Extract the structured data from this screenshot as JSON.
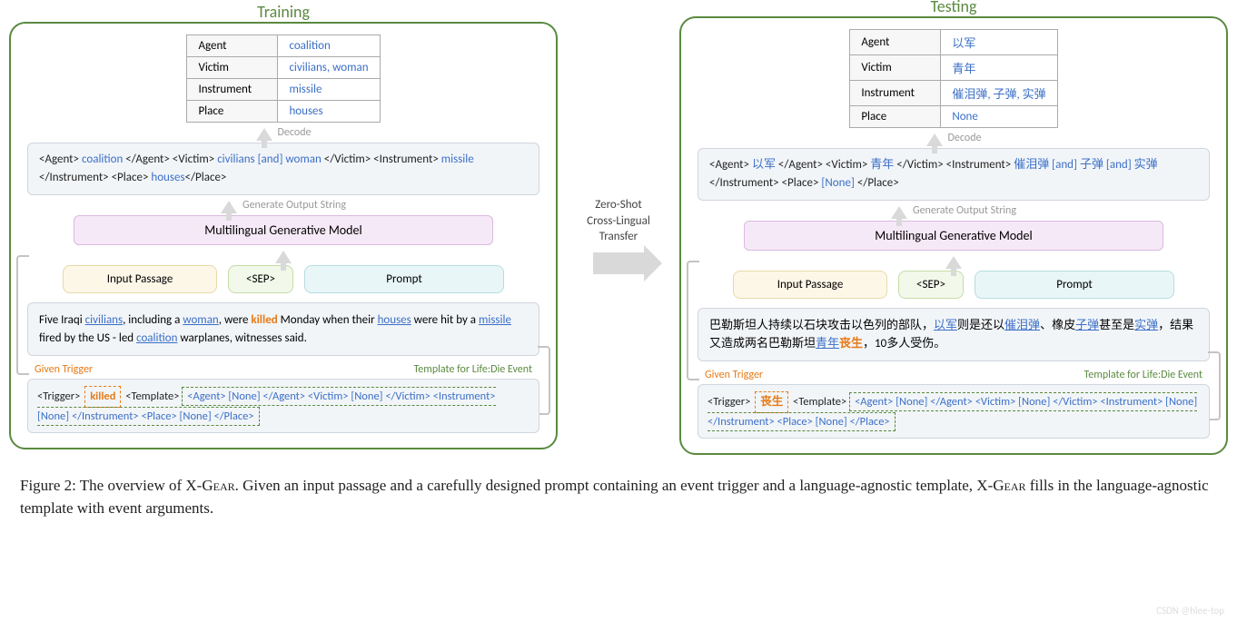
{
  "colors": {
    "panel_border": "#5a8a3f",
    "title_color": "#5a8a3f",
    "link_color": "#3b6fc7",
    "trigger_color": "#e67a17",
    "arrow_gray": "#d9d9d9",
    "box_bg": "#f2f5f8",
    "model_bg": "#f6e9f7",
    "passage_pill_bg": "#fdf7e8",
    "sep_pill_bg": "#f2f8ea",
    "prompt_pill_bg": "#e9f6f7"
  },
  "training": {
    "title": "Training",
    "roles": [
      {
        "role": "Agent",
        "value": "coalition"
      },
      {
        "role": "Victim",
        "value": "civilians, woman"
      },
      {
        "role": "Instrument",
        "value": "missile"
      },
      {
        "role": "Place",
        "value": "houses"
      }
    ],
    "decode_label": "Decode",
    "output_tokens": [
      {
        "t": "tag",
        "v": "<Agent> "
      },
      {
        "t": "val",
        "v": "coalition"
      },
      {
        "t": "tag",
        "v": " </Agent> <Victim> "
      },
      {
        "t": "val",
        "v": "civilians [and] woman"
      },
      {
        "t": "tag",
        "v": " </Victim> <Instrument> "
      },
      {
        "t": "val",
        "v": "missile"
      },
      {
        "t": "tag",
        "v": " </Instrument> <Place> "
      },
      {
        "t": "val",
        "v": "houses"
      },
      {
        "t": "tag",
        "v": "</Place>"
      }
    ],
    "gen_label": "Generate Output String",
    "model_label": "Multilingual Generative Model",
    "pills": {
      "passage": "Input Passage",
      "sep": "<SEP>",
      "prompt": "Prompt"
    },
    "passage_tokens": [
      {
        "t": "txt",
        "v": "Five Iraqi "
      },
      {
        "t": "ul",
        "v": "civilians"
      },
      {
        "t": "txt",
        "v": ", including a "
      },
      {
        "t": "ul",
        "v": "woman"
      },
      {
        "t": "txt",
        "v": ", were "
      },
      {
        "t": "trig",
        "v": "killed"
      },
      {
        "t": "txt",
        "v": " Monday when their "
      },
      {
        "t": "ul",
        "v": "houses"
      },
      {
        "t": "txt",
        "v": " were hit by a "
      },
      {
        "t": "ul",
        "v": "missile"
      },
      {
        "t": "txt",
        "v": " fired by the US - led "
      },
      {
        "t": "ul",
        "v": "coalition"
      },
      {
        "t": "txt",
        "v": " warplanes, witnesses said."
      }
    ],
    "prompt_labels": {
      "trigger": "Given Trigger",
      "template": "Template for Life:Die Event"
    },
    "prompt_prefix": "<Trigger>",
    "prompt_trigger": "killed",
    "prompt_mid": "<Template>",
    "prompt_template": "<Agent> [None] </Agent> <Victim> [None] </Victim> <Instrument> [None] </Instrument> <Place> [None] </Place>"
  },
  "transfer": {
    "label": "Zero-Shot\nCross-Lingual\nTransfer"
  },
  "testing": {
    "title": "Testing",
    "roles": [
      {
        "role": "Agent",
        "value": "以军"
      },
      {
        "role": "Victim",
        "value": "青年"
      },
      {
        "role": "Instrument",
        "value": "催泪弹, 子弹, 实弹"
      },
      {
        "role": "Place",
        "value": "None"
      }
    ],
    "decode_label": "Decode",
    "output_tokens": [
      {
        "t": "tag",
        "v": "<Agent> "
      },
      {
        "t": "val",
        "v": "以军"
      },
      {
        "t": "tag",
        "v": " </Agent> <Victim> "
      },
      {
        "t": "val",
        "v": "青年"
      },
      {
        "t": "tag",
        "v": " </Victim> <Instrument> "
      },
      {
        "t": "val",
        "v": "催泪弹 [and] 子弹 [and] 实弹"
      },
      {
        "t": "tag",
        "v": " </Instrument> <Place> "
      },
      {
        "t": "val",
        "v": "[None]"
      },
      {
        "t": "tag",
        "v": " </Place>"
      }
    ],
    "gen_label": "Generate Output String",
    "model_label": "Multilingual Generative Model",
    "pills": {
      "passage": "Input Passage",
      "sep": "<SEP>",
      "prompt": "Prompt"
    },
    "passage_tokens": [
      {
        "t": "txt",
        "v": "巴勒斯坦人持续以石块攻击以色列的部队，"
      },
      {
        "t": "ul",
        "v": "以军"
      },
      {
        "t": "txt",
        "v": "则是还以"
      },
      {
        "t": "ul",
        "v": "催泪弹"
      },
      {
        "t": "txt",
        "v": "、橡皮"
      },
      {
        "t": "ul",
        "v": "子弹"
      },
      {
        "t": "txt",
        "v": "甚至是"
      },
      {
        "t": "ul",
        "v": "实弹"
      },
      {
        "t": "txt",
        "v": "，结果又造成两名巴勒斯坦"
      },
      {
        "t": "ul",
        "v": "青年"
      },
      {
        "t": "trig",
        "v": "丧生"
      },
      {
        "t": "txt",
        "v": "，10多人受伤。"
      }
    ],
    "prompt_labels": {
      "trigger": "Given Trigger",
      "template": "Template for Life:Die Event"
    },
    "prompt_prefix": "<Trigger>",
    "prompt_trigger": "丧生",
    "prompt_mid": "<Template>",
    "prompt_template": "<Agent> [None] </Agent> <Victim> [None] </Victim> <Instrument> [None] </Instrument> <Place> [None] </Place>"
  },
  "caption": {
    "prefix": "Figure 2: The overview of X-",
    "gear1": "Gear",
    "mid": ". Given an input passage and a carefully designed prompt containing an event trigger and a language-agnostic template, X-",
    "gear2": "Gear",
    "suffix": " fills in the language-agnostic template with event arguments."
  },
  "watermark": "CSDN @hlee-top"
}
